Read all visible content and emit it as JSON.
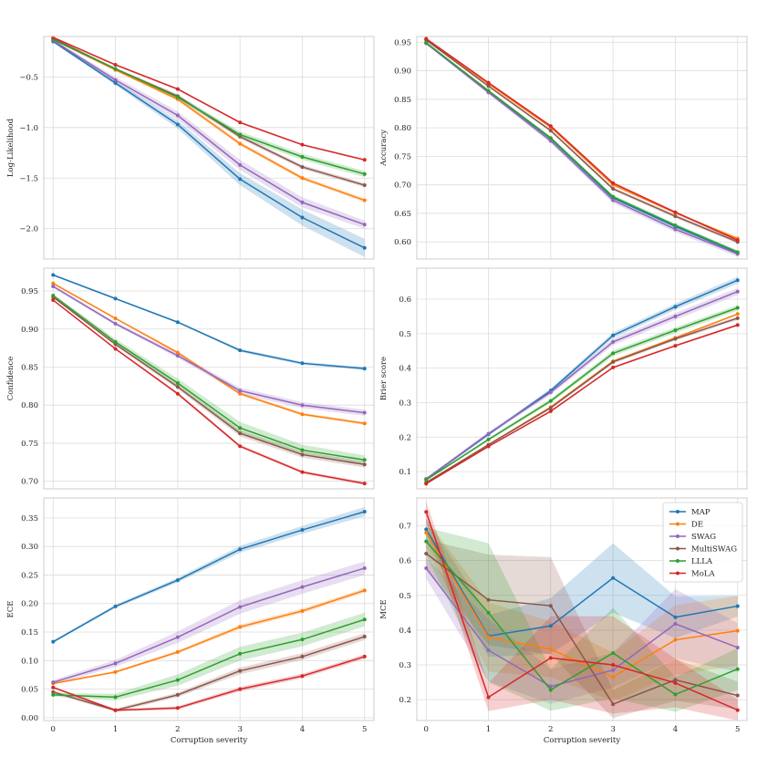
{
  "chart_data": [
    {
      "type": "line",
      "ylabel": "Log-Likelihood",
      "xlabel": "",
      "x": [
        0,
        1,
        2,
        3,
        4,
        5
      ],
      "xlim": [
        -0.15,
        5.15
      ],
      "ylim": [
        -2.3,
        -0.1
      ],
      "yticks": [
        -2.0,
        -1.5,
        -1.0,
        -0.5
      ],
      "ytick_labels": [
        "−2.0",
        "−1.5",
        "−1.0",
        "−0.5"
      ],
      "grid": true,
      "series": [
        {
          "name": "MAP",
          "color": "#1f77b4",
          "values": [
            -0.15,
            -0.56,
            -0.97,
            -1.51,
            -1.89,
            -2.19
          ],
          "band": [
            0.01,
            0.02,
            0.04,
            0.06,
            0.08,
            0.09
          ]
        },
        {
          "name": "DE",
          "color": "#ff7f0e",
          "values": [
            -0.13,
            -0.43,
            -0.72,
            -1.16,
            -1.5,
            -1.72
          ],
          "band": [
            0.01,
            0.01,
            0.02,
            0.02,
            0.02,
            0.02
          ]
        },
        {
          "name": "SWAG",
          "color": "#9467bd",
          "values": [
            -0.14,
            -0.53,
            -0.88,
            -1.37,
            -1.74,
            -1.96
          ],
          "band": [
            0.01,
            0.03,
            0.04,
            0.05,
            0.05,
            0.04
          ]
        },
        {
          "name": "MultiSWAG",
          "color": "#8c564b",
          "values": [
            -0.12,
            -0.42,
            -0.69,
            -1.09,
            -1.39,
            -1.57
          ],
          "band": [
            0.01,
            0.01,
            0.02,
            0.02,
            0.02,
            0.02
          ]
        },
        {
          "name": "LLLA",
          "color": "#2ca02c",
          "values": [
            -0.13,
            -0.42,
            -0.7,
            -1.07,
            -1.29,
            -1.46
          ],
          "band": [
            0.01,
            0.01,
            0.02,
            0.03,
            0.03,
            0.03
          ]
        },
        {
          "name": "MoLA",
          "color": "#d62728",
          "values": [
            -0.11,
            -0.38,
            -0.62,
            -0.95,
            -1.17,
            -1.32
          ],
          "band": [
            0.01,
            0.01,
            0.01,
            0.01,
            0.01,
            0.01
          ]
        }
      ]
    },
    {
      "type": "line",
      "ylabel": "Accuracy",
      "xlabel": "",
      "x": [
        0,
        1,
        2,
        3,
        4,
        5
      ],
      "xlim": [
        -0.15,
        5.15
      ],
      "ylim": [
        0.57,
        0.96
      ],
      "yticks": [
        0.6,
        0.65,
        0.7,
        0.75,
        0.8,
        0.85,
        0.9,
        0.95
      ],
      "ytick_labels": [
        "0.60",
        "0.65",
        "0.70",
        "0.75",
        "0.80",
        "0.85",
        "0.90",
        "0.95"
      ],
      "grid": true,
      "series": [
        {
          "name": "MAP",
          "color": "#1f77b4",
          "values": [
            0.949,
            0.864,
            0.781,
            0.677,
            0.627,
            0.581
          ],
          "band": [
            0.002,
            0.002,
            0.003,
            0.004,
            0.004,
            0.004
          ]
        },
        {
          "name": "DE",
          "color": "#ff7f0e",
          "values": [
            0.955,
            0.877,
            0.801,
            0.7,
            0.651,
            0.606
          ],
          "band": [
            0.002,
            0.002,
            0.002,
            0.002,
            0.002,
            0.002
          ]
        },
        {
          "name": "SWAG",
          "color": "#9467bd",
          "values": [
            0.948,
            0.862,
            0.777,
            0.673,
            0.622,
            0.579
          ],
          "band": [
            0.002,
            0.003,
            0.004,
            0.005,
            0.005,
            0.005
          ]
        },
        {
          "name": "MultiSWAG",
          "color": "#8c564b",
          "values": [
            0.954,
            0.873,
            0.795,
            0.693,
            0.645,
            0.6
          ],
          "band": [
            0.002,
            0.002,
            0.002,
            0.003,
            0.003,
            0.003
          ]
        },
        {
          "name": "LLLA",
          "color": "#2ca02c",
          "values": [
            0.949,
            0.865,
            0.782,
            0.679,
            0.629,
            0.582
          ],
          "band": [
            0.002,
            0.002,
            0.003,
            0.003,
            0.003,
            0.003
          ]
        },
        {
          "name": "MoLA",
          "color": "#d62728",
          "values": [
            0.956,
            0.879,
            0.803,
            0.703,
            0.652,
            0.603
          ],
          "band": [
            0.002,
            0.002,
            0.002,
            0.002,
            0.002,
            0.002
          ]
        }
      ]
    },
    {
      "type": "line",
      "ylabel": "Confidence",
      "xlabel": "",
      "x": [
        0,
        1,
        2,
        3,
        4,
        5
      ],
      "xlim": [
        -0.15,
        5.15
      ],
      "ylim": [
        0.69,
        0.98
      ],
      "yticks": [
        0.7,
        0.75,
        0.8,
        0.85,
        0.9,
        0.95
      ],
      "ytick_labels": [
        "0.70",
        "0.75",
        "0.80",
        "0.85",
        "0.90",
        "0.95"
      ],
      "grid": true,
      "series": [
        {
          "name": "MAP",
          "color": "#1f77b4",
          "values": [
            0.971,
            0.94,
            0.909,
            0.872,
            0.855,
            0.848
          ],
          "band": [
            0.001,
            0.001,
            0.001,
            0.002,
            0.002,
            0.002
          ]
        },
        {
          "name": "DE",
          "color": "#ff7f0e",
          "values": [
            0.96,
            0.914,
            0.869,
            0.815,
            0.788,
            0.776
          ],
          "band": [
            0.001,
            0.001,
            0.002,
            0.002,
            0.002,
            0.002
          ]
        },
        {
          "name": "SWAG",
          "color": "#9467bd",
          "values": [
            0.956,
            0.907,
            0.865,
            0.819,
            0.8,
            0.79
          ],
          "band": [
            0.002,
            0.002,
            0.003,
            0.004,
            0.004,
            0.004
          ]
        },
        {
          "name": "MultiSWAG",
          "color": "#8c564b",
          "values": [
            0.942,
            0.88,
            0.824,
            0.763,
            0.735,
            0.722
          ],
          "band": [
            0.001,
            0.002,
            0.003,
            0.004,
            0.004,
            0.004
          ]
        },
        {
          "name": "LLLA",
          "color": "#2ca02c",
          "values": [
            0.944,
            0.883,
            0.829,
            0.77,
            0.741,
            0.728
          ],
          "band": [
            0.002,
            0.004,
            0.006,
            0.008,
            0.007,
            0.006
          ]
        },
        {
          "name": "MoLA",
          "color": "#d62728",
          "values": [
            0.938,
            0.874,
            0.815,
            0.746,
            0.712,
            0.697
          ],
          "band": [
            0.001,
            0.001,
            0.002,
            0.002,
            0.002,
            0.002
          ]
        }
      ]
    },
    {
      "type": "line",
      "ylabel": "Brier score",
      "xlabel": "",
      "x": [
        0,
        1,
        2,
        3,
        4,
        5
      ],
      "xlim": [
        -0.15,
        5.15
      ],
      "ylim": [
        0.05,
        0.69
      ],
      "yticks": [
        0.1,
        0.2,
        0.3,
        0.4,
        0.5,
        0.6
      ],
      "ytick_labels": [
        "0.1",
        "0.2",
        "0.3",
        "0.4",
        "0.5",
        "0.6"
      ],
      "grid": true,
      "series": [
        {
          "name": "MAP",
          "color": "#1f77b4",
          "values": [
            0.078,
            0.208,
            0.335,
            0.495,
            0.578,
            0.655
          ],
          "band": [
            0.003,
            0.004,
            0.006,
            0.008,
            0.009,
            0.01
          ]
        },
        {
          "name": "DE",
          "color": "#ff7f0e",
          "values": [
            0.068,
            0.178,
            0.287,
            0.42,
            0.488,
            0.557
          ],
          "band": [
            0.002,
            0.002,
            0.003,
            0.003,
            0.003,
            0.003
          ]
        },
        {
          "name": "SWAG",
          "color": "#9467bd",
          "values": [
            0.079,
            0.21,
            0.33,
            0.476,
            0.55,
            0.622
          ],
          "band": [
            0.003,
            0.005,
            0.007,
            0.009,
            0.01,
            0.01
          ]
        },
        {
          "name": "MultiSWAG",
          "color": "#8c564b",
          "values": [
            0.068,
            0.178,
            0.285,
            0.418,
            0.485,
            0.545
          ],
          "band": [
            0.002,
            0.003,
            0.004,
            0.005,
            0.005,
            0.005
          ]
        },
        {
          "name": "LLLA",
          "color": "#2ca02c",
          "values": [
            0.076,
            0.193,
            0.305,
            0.443,
            0.51,
            0.575
          ],
          "band": [
            0.003,
            0.004,
            0.006,
            0.008,
            0.008,
            0.008
          ]
        },
        {
          "name": "MoLA",
          "color": "#d62728",
          "values": [
            0.065,
            0.173,
            0.275,
            0.402,
            0.465,
            0.525
          ],
          "band": [
            0.002,
            0.002,
            0.003,
            0.003,
            0.003,
            0.003
          ]
        }
      ]
    },
    {
      "type": "line",
      "ylabel": "ECE",
      "xlabel": "Corruption severity",
      "x": [
        0,
        1,
        2,
        3,
        4,
        5
      ],
      "xlim": [
        -0.15,
        5.15
      ],
      "ylim": [
        -0.005,
        0.385
      ],
      "yticks": [
        0.0,
        0.05,
        0.1,
        0.15,
        0.2,
        0.25,
        0.3,
        0.35
      ],
      "ytick_labels": [
        "0.00",
        "0.05",
        "0.10",
        "0.15",
        "0.20",
        "0.25",
        "0.30",
        "0.35"
      ],
      "xticks": [
        0,
        1,
        2,
        3,
        4,
        5
      ],
      "grid": true,
      "series": [
        {
          "name": "MAP",
          "color": "#1f77b4",
          "values": [
            0.133,
            0.195,
            0.241,
            0.295,
            0.329,
            0.361
          ],
          "band": [
            0.002,
            0.003,
            0.004,
            0.006,
            0.007,
            0.008
          ]
        },
        {
          "name": "DE",
          "color": "#ff7f0e",
          "values": [
            0.06,
            0.08,
            0.115,
            0.159,
            0.187,
            0.223
          ],
          "band": [
            0.002,
            0.002,
            0.003,
            0.004,
            0.004,
            0.004
          ]
        },
        {
          "name": "SWAG",
          "color": "#9467bd",
          "values": [
            0.062,
            0.095,
            0.141,
            0.194,
            0.229,
            0.262
          ],
          "band": [
            0.004,
            0.006,
            0.01,
            0.012,
            0.012,
            0.012
          ]
        },
        {
          "name": "MultiSWAG",
          "color": "#8c564b",
          "values": [
            0.045,
            0.013,
            0.04,
            0.082,
            0.107,
            0.142
          ],
          "band": [
            0.003,
            0.003,
            0.004,
            0.006,
            0.006,
            0.006
          ]
        },
        {
          "name": "LLLA",
          "color": "#2ca02c",
          "values": [
            0.04,
            0.036,
            0.066,
            0.112,
            0.137,
            0.172
          ],
          "band": [
            0.003,
            0.006,
            0.01,
            0.012,
            0.012,
            0.012
          ]
        },
        {
          "name": "MoLA",
          "color": "#d62728",
          "values": [
            0.053,
            0.013,
            0.017,
            0.05,
            0.073,
            0.107
          ],
          "band": [
            0.002,
            0.002,
            0.003,
            0.004,
            0.004,
            0.004
          ]
        }
      ]
    },
    {
      "type": "line",
      "ylabel": "MCE",
      "xlabel": "Corruption severity",
      "x": [
        0,
        1,
        2,
        3,
        4,
        5
      ],
      "xlim": [
        -0.15,
        5.15
      ],
      "ylim": [
        0.14,
        0.78
      ],
      "yticks": [
        0.2,
        0.3,
        0.4,
        0.5,
        0.6,
        0.7
      ],
      "ytick_labels": [
        "0.2",
        "0.3",
        "0.4",
        "0.5",
        "0.6",
        "0.7"
      ],
      "xticks": [
        0,
        1,
        2,
        3,
        4,
        5
      ],
      "grid": true,
      "legend": "top-right",
      "series": [
        {
          "name": "MAP",
          "color": "#1f77b4",
          "values": [
            0.69,
            0.383,
            0.412,
            0.55,
            0.437,
            0.469
          ],
          "band": [
            0.03,
            0.06,
            0.08,
            0.1,
            0.06,
            0.03
          ]
        },
        {
          "name": "DE",
          "color": "#ff7f0e",
          "values": [
            0.68,
            0.38,
            0.345,
            0.265,
            0.372,
            0.398
          ],
          "band": [
            0.04,
            0.1,
            0.08,
            0.07,
            0.1,
            0.1
          ]
        },
        {
          "name": "SWAG",
          "color": "#9467bd",
          "values": [
            0.578,
            0.342,
            0.238,
            0.285,
            0.418,
            0.35
          ],
          "band": [
            0.03,
            0.09,
            0.05,
            0.05,
            0.1,
            0.07
          ]
        },
        {
          "name": "MultiSWAG",
          "color": "#8c564b",
          "values": [
            0.62,
            0.487,
            0.47,
            0.187,
            0.257,
            0.212
          ],
          "band": [
            0.04,
            0.13,
            0.14,
            0.04,
            0.06,
            0.04
          ]
        },
        {
          "name": "LLLA",
          "color": "#2ca02c",
          "values": [
            0.655,
            0.45,
            0.228,
            0.334,
            0.215,
            0.288
          ],
          "band": [
            0.04,
            0.2,
            0.06,
            0.13,
            0.05,
            0.06
          ]
        },
        {
          "name": "MoLA",
          "color": "#d62728",
          "values": [
            0.74,
            0.207,
            0.32,
            0.3,
            0.248,
            0.17
          ],
          "band": [
            0.03,
            0.04,
            0.12,
            0.14,
            0.07,
            0.03
          ]
        }
      ]
    }
  ]
}
